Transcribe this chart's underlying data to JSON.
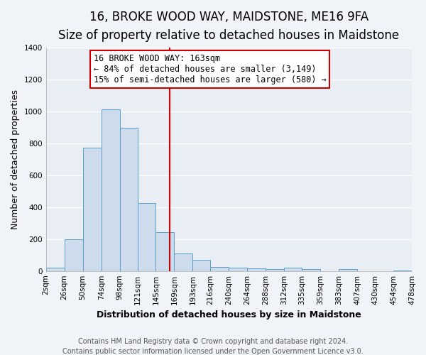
{
  "title": "16, BROKE WOOD WAY, MAIDSTONE, ME16 9FA",
  "subtitle": "Size of property relative to detached houses in Maidstone",
  "xlabel": "Distribution of detached houses by size in Maidstone",
  "ylabel": "Number of detached properties",
  "bin_edges": [
    2,
    26,
    50,
    74,
    98,
    121,
    145,
    169,
    193,
    216,
    240,
    264,
    288,
    312,
    335,
    359,
    383,
    407,
    430,
    454,
    478
  ],
  "counts": [
    20,
    200,
    770,
    1010,
    895,
    425,
    245,
    110,
    70,
    25,
    20,
    15,
    10,
    20,
    10,
    0,
    10,
    0,
    0,
    5
  ],
  "bar_color": "#ccdcec",
  "bar_edge_color": "#5e9dc8",
  "vline_x": 163,
  "vline_color": "#cc0000",
  "annotation_title": "16 BROKE WOOD WAY: 163sqm",
  "annotation_line1": "← 84% of detached houses are smaller (3,149)",
  "annotation_line2": "15% of semi-detached houses are larger (580) →",
  "annotation_box_facecolor": "#ffffff",
  "annotation_box_edgecolor": "#cc0000",
  "tick_labels": [
    "2sqm",
    "26sqm",
    "50sqm",
    "74sqm",
    "98sqm",
    "121sqm",
    "145sqm",
    "169sqm",
    "193sqm",
    "216sqm",
    "240sqm",
    "264sqm",
    "288sqm",
    "312sqm",
    "335sqm",
    "359sqm",
    "383sqm",
    "407sqm",
    "430sqm",
    "454sqm",
    "478sqm"
  ],
  "ylim": [
    0,
    1400
  ],
  "yticks": [
    0,
    200,
    400,
    600,
    800,
    1000,
    1200,
    1400
  ],
  "footer1": "Contains HM Land Registry data © Crown copyright and database right 2024.",
  "footer2": "Contains public sector information licensed under the Open Government Licence v3.0.",
  "bg_color": "#f0f4f8",
  "plot_bg_color": "#e8eef4",
  "grid_color": "#ffffff",
  "title_fontsize": 12,
  "subtitle_fontsize": 10,
  "axis_label_fontsize": 9,
  "tick_fontsize": 7.5,
  "footer_fontsize": 7,
  "annotation_fontsize": 8.5
}
